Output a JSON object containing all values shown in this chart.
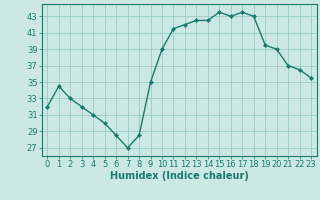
{
  "x": [
    0,
    1,
    2,
    3,
    4,
    5,
    6,
    7,
    8,
    9,
    10,
    11,
    12,
    13,
    14,
    15,
    16,
    17,
    18,
    19,
    20,
    21,
    22,
    23
  ],
  "y": [
    32,
    34.5,
    33,
    32,
    31,
    30,
    28.5,
    27,
    28.5,
    35,
    39,
    41.5,
    42,
    42.5,
    42.5,
    43.5,
    43,
    43.5,
    43,
    39.5,
    39,
    37,
    36.5,
    35.5
  ],
  "line_color": "#1a7a6e",
  "marker_color": "#1a7a6e",
  "bg_color": "#cce8e4",
  "grid_color": "#99ccc7",
  "axis_color": "#1a7a6e",
  "xlabel": "Humidex (Indice chaleur)",
  "ylim": [
    26,
    44.5
  ],
  "xlim": [
    -0.5,
    23.5
  ],
  "yticks": [
    27,
    29,
    31,
    33,
    35,
    37,
    39,
    41,
    43
  ],
  "xticks": [
    0,
    1,
    2,
    3,
    4,
    5,
    6,
    7,
    8,
    9,
    10,
    11,
    12,
    13,
    14,
    15,
    16,
    17,
    18,
    19,
    20,
    21,
    22,
    23
  ],
  "xtick_labels": [
    "0",
    "1",
    "2",
    "3",
    "4",
    "5",
    "6",
    "7",
    "8",
    "9",
    "10",
    "11",
    "12",
    "13",
    "14",
    "15",
    "16",
    "17",
    "18",
    "19",
    "20",
    "21",
    "22",
    "23"
  ],
  "label_fontsize": 7,
  "tick_fontsize": 6
}
